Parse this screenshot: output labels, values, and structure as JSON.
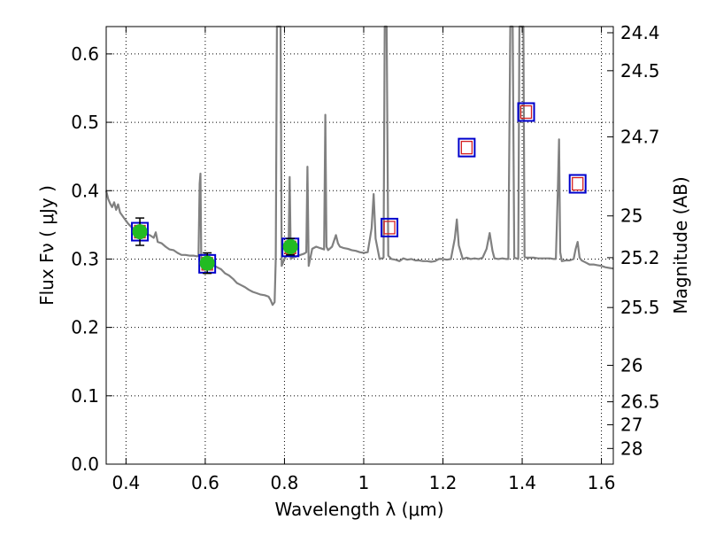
{
  "chart_data": {
    "type": "line",
    "title": "",
    "xlabel": "Wavelength  λ (μm)",
    "ylabel": "Flux  Fν  ( μJy )",
    "y2label": "Magnitude (AB)",
    "xlim": [
      0.35,
      1.63
    ],
    "ylim": [
      0.0,
      0.64
    ],
    "grid": true,
    "grid_style": "dotted",
    "x_ticks": [
      0.4,
      0.6,
      0.8,
      1.0,
      1.2,
      1.4,
      1.6
    ],
    "x_tick_labels": [
      "0.4",
      "0.6",
      "0.8",
      "1",
      "1.2",
      "1.4",
      "1.6"
    ],
    "y_ticks": [
      0.0,
      0.1,
      0.2,
      0.3,
      0.4,
      0.5,
      0.6
    ],
    "y_tick_labels": [
      "0.0",
      "0.1",
      "0.2",
      "0.3",
      "0.4",
      "0.5",
      "0.6"
    ],
    "y2_tick_labels": [
      "24.4",
      "24.5",
      "24.7",
      "25",
      "25.2",
      "25.5",
      "26",
      "26.5",
      "27",
      "28"
    ],
    "spectrum_color": "#808080",
    "spectrum": [
      [
        0.35,
        0.4
      ],
      [
        0.355,
        0.388
      ],
      [
        0.36,
        0.381
      ],
      [
        0.365,
        0.376
      ],
      [
        0.37,
        0.383
      ],
      [
        0.375,
        0.372
      ],
      [
        0.38,
        0.38
      ],
      [
        0.385,
        0.368
      ],
      [
        0.39,
        0.364
      ],
      [
        0.395,
        0.36
      ],
      [
        0.4,
        0.356
      ],
      [
        0.405,
        0.352
      ],
      [
        0.41,
        0.349
      ],
      [
        0.415,
        0.346
      ],
      [
        0.42,
        0.345
      ],
      [
        0.43,
        0.341
      ],
      [
        0.44,
        0.339
      ],
      [
        0.45,
        0.336
      ],
      [
        0.46,
        0.335
      ],
      [
        0.47,
        0.331
      ],
      [
        0.475,
        0.339
      ],
      [
        0.48,
        0.325
      ],
      [
        0.49,
        0.323
      ],
      [
        0.5,
        0.318
      ],
      [
        0.51,
        0.314
      ],
      [
        0.52,
        0.313
      ],
      [
        0.53,
        0.309
      ],
      [
        0.54,
        0.306
      ],
      [
        0.55,
        0.306
      ],
      [
        0.56,
        0.305
      ],
      [
        0.57,
        0.305
      ],
      [
        0.58,
        0.304
      ],
      [
        0.583,
        0.305
      ],
      [
        0.586,
        0.41
      ],
      [
        0.588,
        0.425
      ],
      [
        0.59,
        0.3
      ],
      [
        0.6,
        0.298
      ],
      [
        0.61,
        0.296
      ],
      [
        0.62,
        0.291
      ],
      [
        0.63,
        0.288
      ],
      [
        0.64,
        0.285
      ],
      [
        0.65,
        0.279
      ],
      [
        0.66,
        0.276
      ],
      [
        0.67,
        0.271
      ],
      [
        0.68,
        0.265
      ],
      [
        0.69,
        0.262
      ],
      [
        0.7,
        0.259
      ],
      [
        0.71,
        0.255
      ],
      [
        0.72,
        0.252
      ],
      [
        0.73,
        0.25
      ],
      [
        0.74,
        0.248
      ],
      [
        0.75,
        0.247
      ],
      [
        0.76,
        0.245
      ],
      [
        0.765,
        0.24
      ],
      [
        0.77,
        0.233
      ],
      [
        0.775,
        0.237
      ],
      [
        0.778,
        0.3
      ],
      [
        0.781,
        0.64
      ],
      [
        0.79,
        0.64
      ],
      [
        0.793,
        0.29
      ],
      [
        0.8,
        0.3
      ],
      [
        0.805,
        0.305
      ],
      [
        0.81,
        0.306
      ],
      [
        0.813,
        0.42
      ],
      [
        0.816,
        0.3
      ],
      [
        0.82,
        0.302
      ],
      [
        0.83,
        0.304
      ],
      [
        0.84,
        0.306
      ],
      [
        0.85,
        0.308
      ],
      [
        0.855,
        0.31
      ],
      [
        0.858,
        0.435
      ],
      [
        0.861,
        0.29
      ],
      [
        0.87,
        0.315
      ],
      [
        0.88,
        0.318
      ],
      [
        0.89,
        0.316
      ],
      [
        0.9,
        0.314
      ],
      [
        0.903,
        0.511
      ],
      [
        0.906,
        0.318
      ],
      [
        0.91,
        0.313
      ],
      [
        0.92,
        0.318
      ],
      [
        0.93,
        0.335
      ],
      [
        0.935,
        0.323
      ],
      [
        0.94,
        0.318
      ],
      [
        0.95,
        0.316
      ],
      [
        0.96,
        0.315
      ],
      [
        0.97,
        0.313
      ],
      [
        0.98,
        0.312
      ],
      [
        0.99,
        0.31
      ],
      [
        1.0,
        0.309
      ],
      [
        1.01,
        0.31
      ],
      [
        1.02,
        0.345
      ],
      [
        1.025,
        0.395
      ],
      [
        1.03,
        0.33
      ],
      [
        1.04,
        0.3
      ],
      [
        1.05,
        0.302
      ],
      [
        1.053,
        0.64
      ],
      [
        1.058,
        0.64
      ],
      [
        1.062,
        0.305
      ],
      [
        1.07,
        0.3
      ],
      [
        1.08,
        0.299
      ],
      [
        1.09,
        0.297
      ],
      [
        1.1,
        0.301
      ],
      [
        1.11,
        0.299
      ],
      [
        1.12,
        0.3
      ],
      [
        1.13,
        0.298
      ],
      [
        1.14,
        0.298
      ],
      [
        1.15,
        0.297
      ],
      [
        1.16,
        0.297
      ],
      [
        1.17,
        0.296
      ],
      [
        1.18,
        0.297
      ],
      [
        1.19,
        0.3
      ],
      [
        1.2,
        0.3
      ],
      [
        1.21,
        0.299
      ],
      [
        1.22,
        0.3
      ],
      [
        1.23,
        0.33
      ],
      [
        1.235,
        0.358
      ],
      [
        1.24,
        0.32
      ],
      [
        1.25,
        0.3
      ],
      [
        1.26,
        0.302
      ],
      [
        1.27,
        0.3
      ],
      [
        1.28,
        0.301
      ],
      [
        1.29,
        0.3
      ],
      [
        1.3,
        0.302
      ],
      [
        1.31,
        0.315
      ],
      [
        1.318,
        0.338
      ],
      [
        1.325,
        0.312
      ],
      [
        1.33,
        0.301
      ],
      [
        1.34,
        0.3
      ],
      [
        1.35,
        0.301
      ],
      [
        1.36,
        0.3
      ],
      [
        1.365,
        0.3
      ],
      [
        1.37,
        0.64
      ],
      [
        1.376,
        0.64
      ],
      [
        1.38,
        0.302
      ],
      [
        1.39,
        0.3
      ],
      [
        1.393,
        0.64
      ],
      [
        1.395,
        0.64
      ],
      [
        1.4,
        0.64
      ],
      [
        1.403,
        0.64
      ],
      [
        1.406,
        0.303
      ],
      [
        1.41,
        0.302
      ],
      [
        1.42,
        0.302
      ],
      [
        1.43,
        0.302
      ],
      [
        1.44,
        0.301
      ],
      [
        1.45,
        0.301
      ],
      [
        1.46,
        0.301
      ],
      [
        1.47,
        0.301
      ],
      [
        1.48,
        0.3
      ],
      [
        1.485,
        0.3
      ],
      [
        1.49,
        0.4
      ],
      [
        1.493,
        0.475
      ],
      [
        1.496,
        0.31
      ],
      [
        1.5,
        0.297
      ],
      [
        1.51,
        0.298
      ],
      [
        1.52,
        0.298
      ],
      [
        1.53,
        0.3
      ],
      [
        1.535,
        0.315
      ],
      [
        1.54,
        0.325
      ],
      [
        1.545,
        0.302
      ],
      [
        1.55,
        0.298
      ],
      [
        1.56,
        0.295
      ],
      [
        1.57,
        0.292
      ],
      [
        1.58,
        0.292
      ],
      [
        1.59,
        0.291
      ],
      [
        1.6,
        0.29
      ],
      [
        1.61,
        0.288
      ],
      [
        1.62,
        0.287
      ],
      [
        1.63,
        0.286
      ]
    ],
    "model_photometry": {
      "name": "",
      "outer_color": "#0000cc",
      "inner_color": "#d42020",
      "points": [
        [
          0.435,
          0.34
        ],
        [
          0.605,
          0.293
        ],
        [
          0.815,
          0.317
        ],
        [
          1.065,
          0.346
        ],
        [
          1.26,
          0.463
        ],
        [
          1.41,
          0.515
        ],
        [
          1.54,
          0.41
        ]
      ]
    },
    "observed_photometry": {
      "name": "",
      "color": "#22bb22",
      "points": [
        {
          "x": 0.435,
          "y": 0.34,
          "err": 0.02
        },
        {
          "x": 0.605,
          "y": 0.294,
          "err": 0.015
        },
        {
          "x": 0.815,
          "y": 0.318,
          "err": 0.012
        }
      ]
    }
  }
}
